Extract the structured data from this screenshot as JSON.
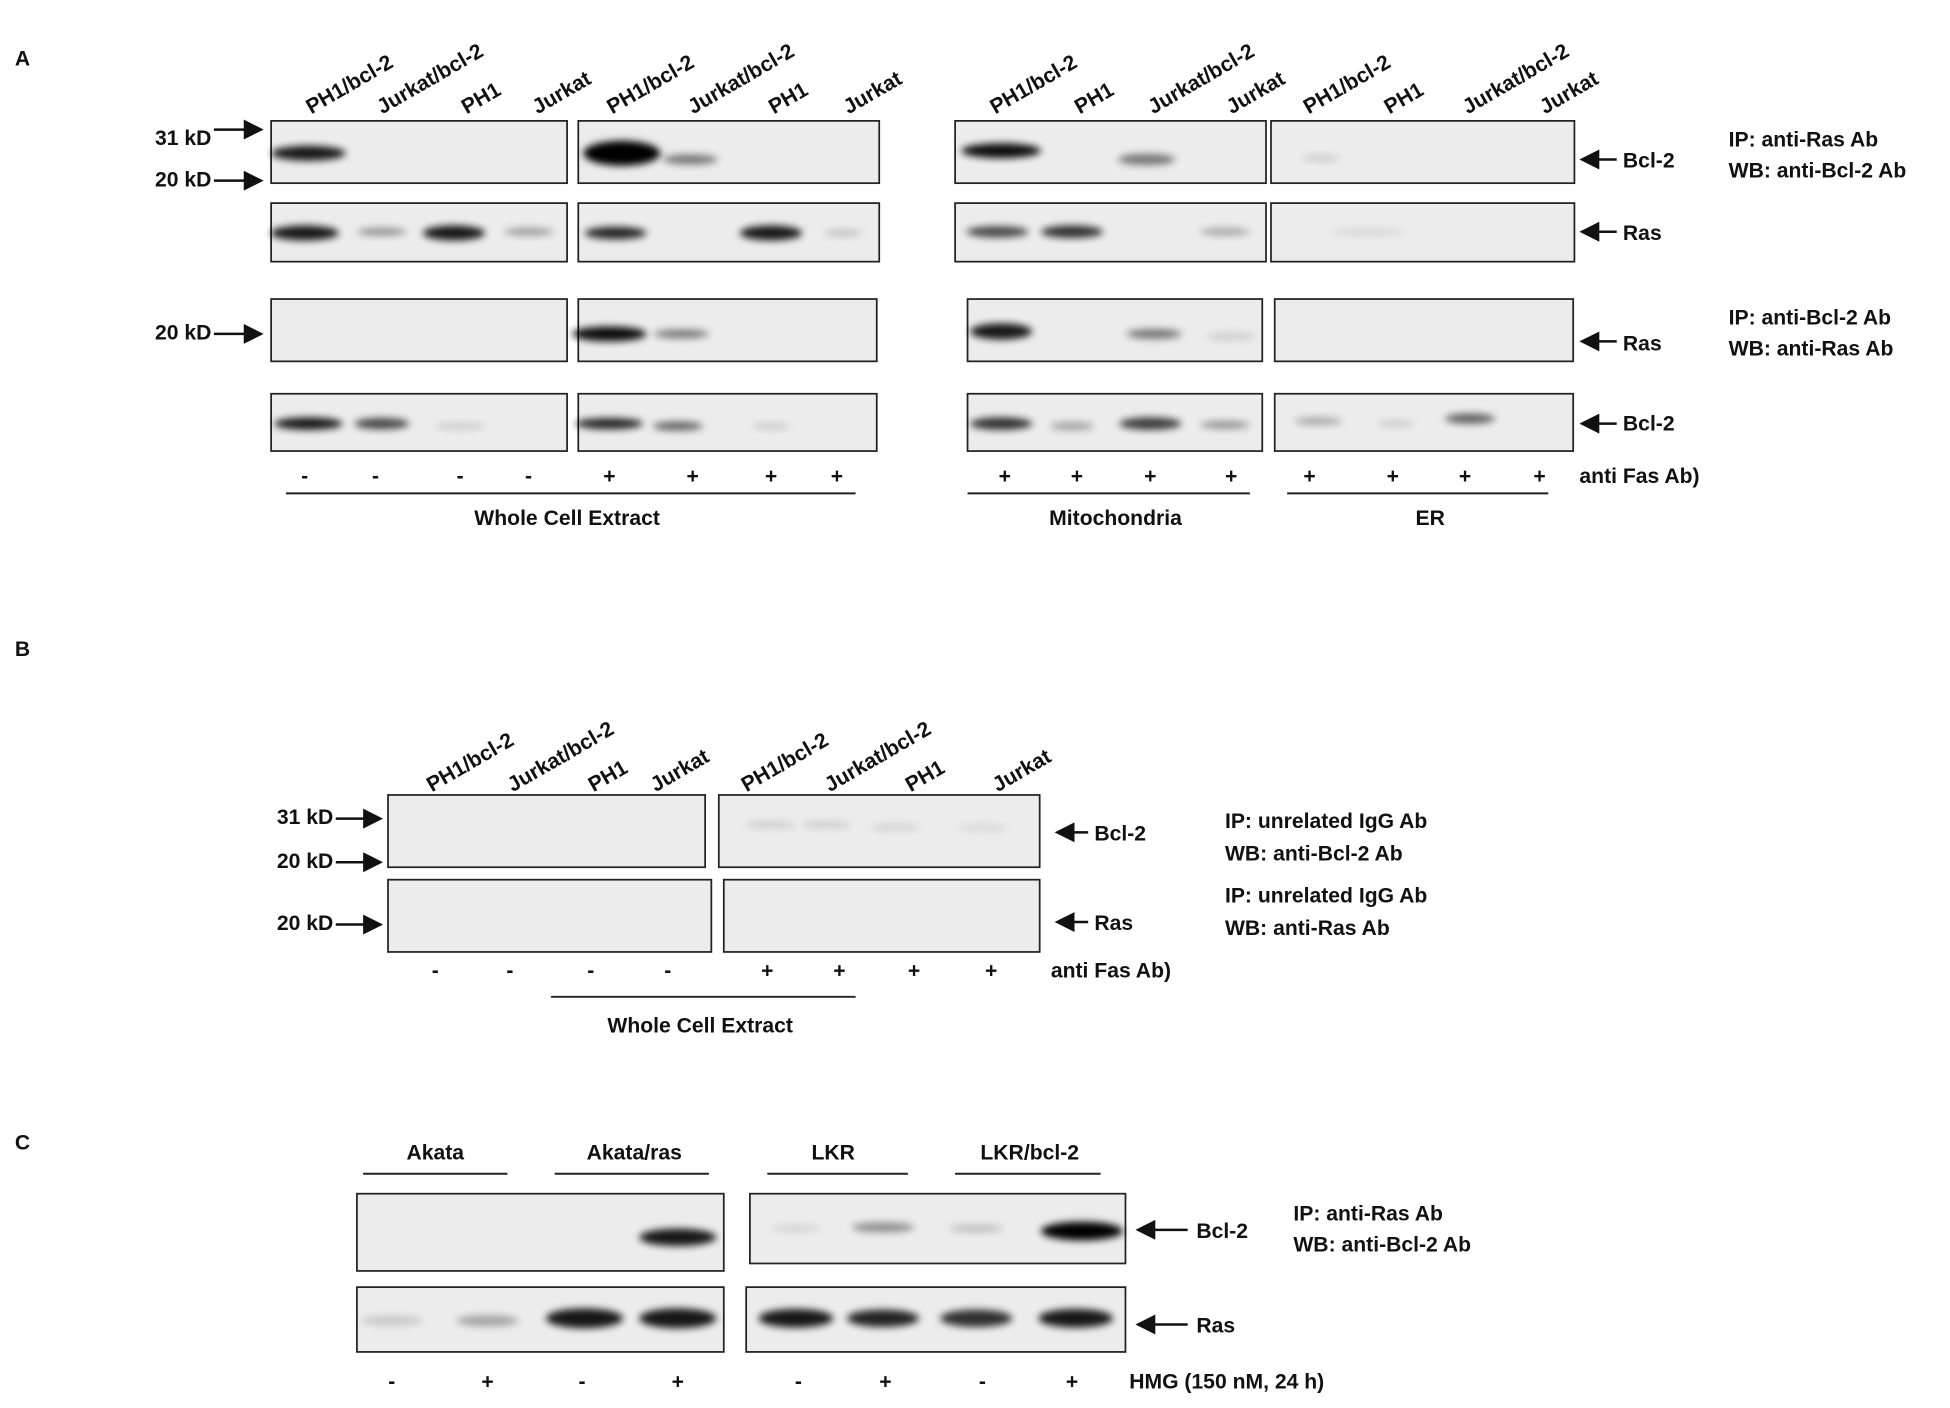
{
  "panel_a": {
    "letter": "A",
    "lanes": [
      "PH1/bcl-2",
      "Jurkat/bcl-2",
      "PH1",
      "Jurkat",
      "PH1/bcl-2",
      "Jurkat/bcl-2",
      "PH1",
      "Jurkat",
      "PH1/bcl-2",
      "PH1",
      "Jurkat/bcl-2",
      "Jurkat",
      "PH1/bcl-2",
      "PH1",
      "Jurkat/bcl-2",
      "Jurkat"
    ],
    "markers": [
      "31 kD",
      "20 kD",
      "20 kD"
    ],
    "band_labels": [
      "Bcl-2",
      "Ras",
      "Ras",
      "Bcl-2"
    ],
    "conditions": [
      "IP: anti-Ras Ab",
      "WB: anti-Bcl-2 Ab",
      "IP: anti-Bcl-2 Ab",
      "WB: anti-Ras Ab"
    ],
    "treatments": [
      "-",
      "-",
      "-",
      "-",
      "+",
      "+",
      "+",
      "+",
      "+",
      "+",
      "+",
      "+",
      "+",
      "+",
      "+",
      "+"
    ],
    "treatment_label": "anti Fas Ab)",
    "groups": [
      "Whole Cell Extract",
      "Mitochondria",
      "ER"
    ]
  },
  "panel_b": {
    "letter": "B",
    "lanes": [
      "PH1/bcl-2",
      "Jurkat/bcl-2",
      "PH1",
      "Jurkat",
      "PH1/bcl-2",
      "Jurkat/bcl-2",
      "PH1",
      "Jurkat"
    ],
    "markers": [
      "31 kD",
      "20 kD",
      "20 kD"
    ],
    "band_labels": [
      "Bcl-2",
      "Ras"
    ],
    "conditions": [
      "IP: unrelated IgG Ab",
      "WB: anti-Bcl-2 Ab",
      "IP: unrelated IgG Ab",
      "WB: anti-Ras Ab"
    ],
    "treatments": [
      "-",
      "-",
      "-",
      "-",
      "+",
      "+",
      "+",
      "+"
    ],
    "treatment_label": "anti Fas Ab)",
    "groups": [
      "Whole Cell Extract"
    ]
  },
  "panel_c": {
    "letter": "C",
    "groups": [
      "Akata",
      "Akata/ras",
      "LKR",
      "LKR/bcl-2"
    ],
    "band_labels": [
      "Bcl-2",
      "Ras"
    ],
    "conditions": [
      "IP: anti-Ras Ab",
      "WB: anti-Bcl-2 Ab"
    ],
    "treatments": [
      "-",
      "+",
      "-",
      "+",
      "-",
      "+",
      "-",
      "+"
    ],
    "treatment_label": "HMG (150 nM, 24 h)"
  }
}
